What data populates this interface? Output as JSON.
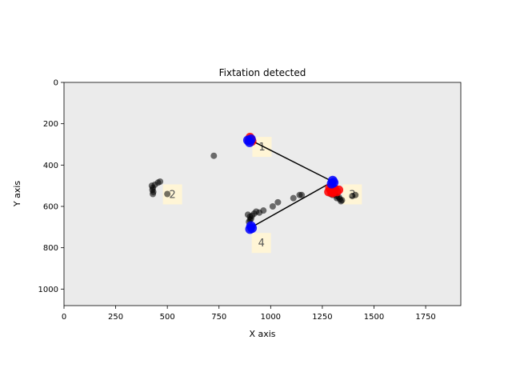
{
  "chart_data": {
    "type": "scatter",
    "title": "Fixtation detected",
    "xlabel": "X axis",
    "ylabel": "Y axis",
    "xlim": [
      0,
      1920
    ],
    "ylim": [
      1080,
      0
    ],
    "x_ticks": [
      0,
      250,
      500,
      750,
      1000,
      1250,
      1500,
      1750
    ],
    "y_ticks": [
      0,
      200,
      400,
      600,
      800,
      1000
    ],
    "background_color": "#ebebeb",
    "grid": false,
    "raw_points": {
      "color": "#000000",
      "points": [
        [
          425,
          500
        ],
        [
          430,
          510
        ],
        [
          428,
          520
        ],
        [
          432,
          530
        ],
        [
          440,
          495
        ],
        [
          455,
          485
        ],
        [
          465,
          480
        ],
        [
          430,
          540
        ],
        [
          500,
          540
        ],
        [
          725,
          355
        ],
        [
          890,
          640
        ],
        [
          900,
          650
        ],
        [
          905,
          660
        ],
        [
          910,
          645
        ],
        [
          920,
          635
        ],
        [
          930,
          625
        ],
        [
          945,
          630
        ],
        [
          965,
          620
        ],
        [
          900,
          665
        ],
        [
          895,
          675
        ],
        [
          1010,
          600
        ],
        [
          1035,
          580
        ],
        [
          1110,
          560
        ],
        [
          1140,
          545
        ],
        [
          1150,
          545
        ],
        [
          1290,
          540
        ],
        [
          1300,
          545
        ],
        [
          1310,
          540
        ],
        [
          1320,
          550
        ],
        [
          1330,
          555
        ],
        [
          1335,
          565
        ],
        [
          1340,
          575
        ],
        [
          1345,
          570
        ],
        [
          1395,
          550
        ],
        [
          1410,
          545
        ],
        [
          1320,
          560
        ]
      ]
    },
    "fixation_points": {
      "color": "#ff0000",
      "points": [
        [
          900,
          265
        ],
        [
          905,
          275
        ],
        [
          895,
          280
        ],
        [
          910,
          285
        ],
        [
          1285,
          510
        ],
        [
          1290,
          520
        ],
        [
          1295,
          530
        ],
        [
          1300,
          535
        ],
        [
          1305,
          525
        ],
        [
          1310,
          515
        ],
        [
          1320,
          530
        ],
        [
          1330,
          520
        ],
        [
          1280,
          530
        ],
        [
          1295,
          505
        ]
      ]
    },
    "fixation_centers": {
      "color": "#0000ff",
      "points": [
        [
          890,
          280
        ],
        [
          898,
          290
        ],
        [
          905,
          275
        ],
        [
          1300,
          475
        ],
        [
          1305,
          485
        ],
        [
          1295,
          490
        ],
        [
          905,
          695
        ],
        [
          910,
          705
        ],
        [
          900,
          710
        ]
      ]
    },
    "scanpath": {
      "color": "#000000",
      "points": [
        [
          900,
          278
        ],
        [
          1300,
          480
        ],
        [
          905,
          702
        ]
      ]
    },
    "fixation_labels": [
      {
        "text": "1",
        "x": 958,
        "y": 310
      },
      {
        "text": "2",
        "x": 525,
        "y": 540
      },
      {
        "text": "3",
        "x": 1395,
        "y": 540
      },
      {
        "text": "4",
        "x": 955,
        "y": 775
      }
    ],
    "label_box_color": "#fff5d6"
  }
}
